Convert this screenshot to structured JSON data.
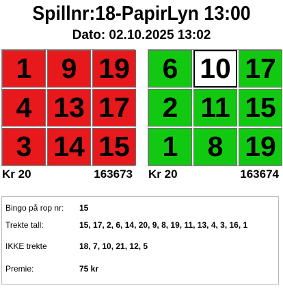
{
  "header": {
    "title": "Spillnr:18-PapirLyn 13:00",
    "date": "Dato: 02.10.2025 13:02"
  },
  "tickets": [
    {
      "numbers": [
        "1",
        "9",
        "19",
        "4",
        "13",
        "17",
        "3",
        "14",
        "15"
      ],
      "states": [
        "red",
        "red",
        "red",
        "red",
        "red",
        "red",
        "red",
        "red",
        "red"
      ],
      "price": "Kr 20",
      "id": "163673"
    },
    {
      "numbers": [
        "6",
        "10",
        "17",
        "2",
        "11",
        "15",
        "1",
        "8",
        "19"
      ],
      "states": [
        "green",
        "white",
        "green",
        "green",
        "green",
        "green",
        "green",
        "green",
        "green"
      ],
      "price": "Kr 20",
      "id": "163674"
    }
  ],
  "colors": {
    "red": "#e8191c",
    "green": "#12c912",
    "white": "#ffffff"
  },
  "info": {
    "bingo_label": "Bingo på rop nr:",
    "bingo_value": "15",
    "drawn_label": "Trekte tall:",
    "drawn_value": "15, 17, 2, 6, 14, 20, 9, 8, 19, 11, 13, 4, 3, 16, 1",
    "notdrawn_label": "IKKE trekte",
    "notdrawn_value": "18, 7, 10, 21, 12, 5",
    "prize_label": "Premie:",
    "prize_value": "75 kr"
  }
}
